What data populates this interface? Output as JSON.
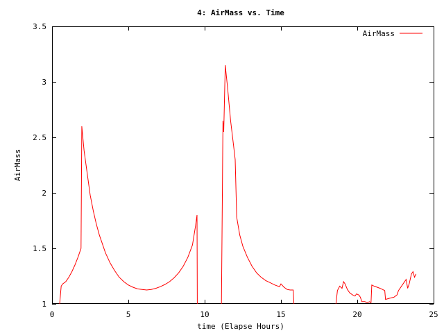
{
  "chart_data": {
    "type": "line",
    "title": "4: AirMass vs. Time",
    "xlabel": "time (Elapse Hours)",
    "ylabel": "AirMass",
    "xlim": [
      0,
      25
    ],
    "ylim": [
      1,
      3.5
    ],
    "x_ticks": [
      0,
      5,
      10,
      15,
      20,
      25
    ],
    "x_tick_labels": [
      "0",
      "5",
      "10",
      "15",
      "20",
      "25"
    ],
    "y_ticks": [
      1,
      1.5,
      2,
      2.5,
      3,
      3.5
    ],
    "y_tick_labels": [
      "1",
      "1.5",
      "2",
      "2.5",
      "3",
      "3.5"
    ],
    "grid": false,
    "legend_position": "top-right",
    "series": [
      {
        "name": "AirMass",
        "color": "#ff0000",
        "segments": [
          [
            [
              0.5,
              1.0
            ],
            [
              0.6,
              1.16
            ],
            [
              0.7,
              1.18
            ],
            [
              0.9,
              1.2
            ],
            [
              1.1,
              1.24
            ],
            [
              1.3,
              1.29
            ],
            [
              1.5,
              1.35
            ],
            [
              1.7,
              1.42
            ],
            [
              1.9,
              1.5
            ],
            [
              1.95,
              2.6
            ],
            [
              2.1,
              2.38
            ],
            [
              2.3,
              2.18
            ],
            [
              2.5,
              1.98
            ],
            [
              2.7,
              1.84
            ],
            [
              2.9,
              1.72
            ],
            [
              3.1,
              1.62
            ],
            [
              3.3,
              1.54
            ],
            [
              3.5,
              1.46
            ],
            [
              3.8,
              1.37
            ],
            [
              4.1,
              1.3
            ],
            [
              4.4,
              1.24
            ],
            [
              4.7,
              1.2
            ],
            [
              5.0,
              1.17
            ],
            [
              5.3,
              1.15
            ],
            [
              5.6,
              1.135
            ],
            [
              5.9,
              1.13
            ],
            [
              6.2,
              1.125
            ],
            [
              6.5,
              1.13
            ],
            [
              6.8,
              1.14
            ],
            [
              7.1,
              1.155
            ],
            [
              7.4,
              1.175
            ],
            [
              7.7,
              1.2
            ],
            [
              8.0,
              1.235
            ],
            [
              8.3,
              1.28
            ],
            [
              8.6,
              1.34
            ],
            [
              8.9,
              1.42
            ],
            [
              9.2,
              1.53
            ],
            [
              9.4,
              1.7
            ],
            [
              9.5,
              1.8
            ],
            [
              9.52,
              1.0
            ]
          ],
          [
            [
              11.1,
              1.0
            ],
            [
              11.2,
              2.65
            ],
            [
              11.25,
              2.55
            ],
            [
              11.35,
              3.15
            ],
            [
              11.5,
              2.95
            ],
            [
              11.7,
              2.65
            ],
            [
              11.9,
              2.42
            ],
            [
              12.0,
              2.3
            ],
            [
              12.1,
              1.78
            ],
            [
              12.3,
              1.62
            ],
            [
              12.5,
              1.52
            ],
            [
              12.8,
              1.42
            ],
            [
              13.1,
              1.34
            ],
            [
              13.4,
              1.28
            ],
            [
              13.7,
              1.24
            ],
            [
              14.0,
              1.21
            ],
            [
              14.3,
              1.19
            ],
            [
              14.6,
              1.17
            ],
            [
              14.9,
              1.155
            ],
            [
              15.0,
              1.18
            ],
            [
              15.2,
              1.15
            ],
            [
              15.4,
              1.13
            ],
            [
              15.6,
              1.125
            ],
            [
              15.8,
              1.125
            ],
            [
              15.85,
              1.0
            ]
          ],
          [
            [
              18.6,
              1.0
            ],
            [
              18.7,
              1.12
            ],
            [
              18.85,
              1.16
            ],
            [
              19.0,
              1.14
            ],
            [
              19.1,
              1.2
            ],
            [
              19.2,
              1.18
            ],
            [
              19.35,
              1.13
            ],
            [
              19.5,
              1.1
            ],
            [
              19.7,
              1.08
            ],
            [
              19.85,
              1.07
            ],
            [
              19.95,
              1.09
            ],
            [
              20.1,
              1.08
            ],
            [
              20.2,
              1.06
            ],
            [
              20.3,
              1.02
            ],
            [
              20.5,
              1.02
            ],
            [
              20.65,
              1.01
            ],
            [
              20.8,
              1.02
            ],
            [
              20.9,
              1.01
            ],
            [
              20.95,
              1.17
            ],
            [
              21.1,
              1.16
            ],
            [
              21.3,
              1.15
            ],
            [
              21.5,
              1.14
            ],
            [
              21.8,
              1.12
            ],
            [
              21.85,
              1.04
            ],
            [
              22.1,
              1.05
            ],
            [
              22.4,
              1.06
            ],
            [
              22.6,
              1.08
            ],
            [
              22.7,
              1.12
            ],
            [
              23.0,
              1.18
            ],
            [
              23.2,
              1.22
            ],
            [
              23.3,
              1.14
            ],
            [
              23.4,
              1.18
            ],
            [
              23.55,
              1.27
            ],
            [
              23.65,
              1.29
            ],
            [
              23.75,
              1.24
            ],
            [
              23.85,
              1.27
            ]
          ]
        ]
      }
    ]
  }
}
